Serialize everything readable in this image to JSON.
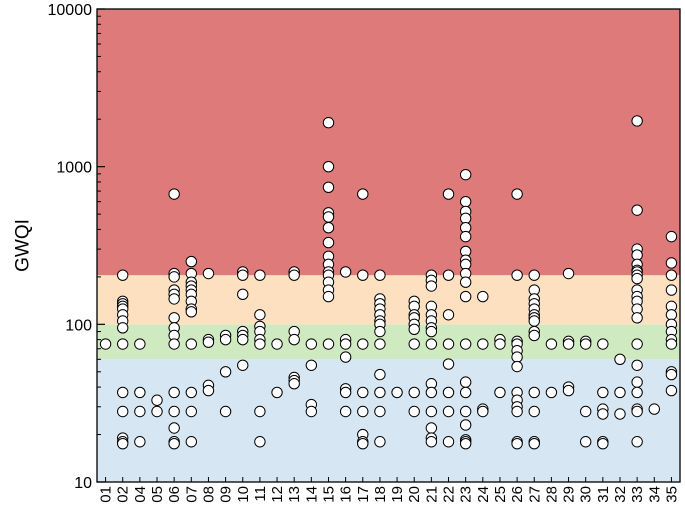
{
  "chart_data": {
    "type": "scatter",
    "title": "",
    "xlabel": "",
    "ylabel": "GWQI",
    "yscale": "log",
    "ylim": [
      10,
      10000
    ],
    "yticks": [
      {
        "value": 10,
        "label": "10"
      },
      {
        "value": 100,
        "label": "100"
      },
      {
        "value": 1000,
        "label": "1000"
      },
      {
        "value": 10000,
        "label": "10000"
      }
    ],
    "categories": [
      "01",
      "02",
      "04",
      "05",
      "06",
      "07",
      "08",
      "09",
      "10",
      "11",
      "12",
      "13",
      "14",
      "15",
      "16",
      "17",
      "18",
      "19",
      "20",
      "21",
      "22",
      "23",
      "24",
      "25",
      "26",
      "27",
      "28",
      "29",
      "30",
      "31",
      "32",
      "33",
      "34",
      "35"
    ],
    "bands": [
      {
        "from": 10,
        "to": 60,
        "color": "#d6e6f2"
      },
      {
        "from": 60,
        "to": 100,
        "color": "#cfeac0"
      },
      {
        "from": 100,
        "to": 205,
        "color": "#fde0c0"
      },
      {
        "from": 205,
        "to": 10000,
        "color": "#df7a7b"
      }
    ],
    "marker_fill": "#ffffff",
    "marker_stroke": "#000000",
    "points": [
      {
        "c": "01",
        "v": [
          75
        ]
      },
      {
        "c": "02",
        "v": [
          205,
          140,
          135,
          130,
          125,
          115,
          105,
          95,
          75,
          37,
          28,
          19,
          18,
          17.5
        ]
      },
      {
        "c": "04",
        "v": [
          75,
          37,
          28,
          18
        ]
      },
      {
        "c": "05",
        "v": [
          33,
          28
        ]
      },
      {
        "c": "06",
        "v": [
          670,
          210,
          200,
          165,
          155,
          145,
          110,
          95,
          85,
          75,
          37,
          28,
          22,
          18,
          17.5
        ]
      },
      {
        "c": "07",
        "v": [
          250,
          210,
          185,
          175,
          165,
          155,
          140,
          125,
          120,
          75,
          37,
          28,
          18
        ]
      },
      {
        "c": "08",
        "v": [
          210,
          80,
          77,
          41,
          38
        ]
      },
      {
        "c": "09",
        "v": [
          85,
          80,
          50,
          28
        ]
      },
      {
        "c": "10",
        "v": [
          215,
          205,
          155,
          90,
          85,
          80,
          55
        ]
      },
      {
        "c": "11",
        "v": [
          205,
          115,
          97,
          90,
          80,
          75,
          28,
          18
        ]
      },
      {
        "c": "12",
        "v": [
          75,
          37
        ]
      },
      {
        "c": "13",
        "v": [
          215,
          205,
          90,
          80,
          46,
          44,
          42
        ]
      },
      {
        "c": "14",
        "v": [
          75,
          55,
          31,
          28
        ]
      },
      {
        "c": "15",
        "v": [
          1900,
          1000,
          740,
          510,
          480,
          410,
          330,
          270,
          240,
          215,
          205,
          185,
          165,
          150,
          75
        ]
      },
      {
        "c": "16",
        "v": [
          215,
          80,
          75,
          62,
          39,
          37,
          28
        ]
      },
      {
        "c": "17",
        "v": [
          670,
          205,
          75,
          37,
          28,
          20,
          18,
          17.5
        ]
      },
      {
        "c": "18",
        "v": [
          205,
          145,
          135,
          125,
          115,
          105,
          100,
          90,
          75,
          48,
          37,
          28,
          18
        ]
      },
      {
        "c": "19",
        "v": [
          37
        ]
      },
      {
        "c": "20",
        "v": [
          140,
          130,
          115,
          110,
          100,
          93,
          75,
          37,
          28
        ]
      },
      {
        "c": "21",
        "v": [
          205,
          190,
          175,
          130,
          115,
          105,
          95,
          90,
          75,
          42,
          37,
          28,
          22,
          19,
          18
        ]
      },
      {
        "c": "22",
        "v": [
          670,
          205,
          115,
          75,
          56,
          37,
          28,
          18
        ]
      },
      {
        "c": "23",
        "v": [
          890,
          600,
          520,
          470,
          410,
          360,
          290,
          255,
          240,
          210,
          185,
          150,
          75,
          43,
          37,
          28,
          23,
          18.5,
          18,
          17.5
        ]
      },
      {
        "c": "24",
        "v": [
          150,
          75,
          29,
          28
        ]
      },
      {
        "c": "25",
        "v": [
          80,
          75,
          37
        ]
      },
      {
        "c": "26",
        "v": [
          670,
          205,
          78,
          75,
          68,
          62,
          54,
          37,
          33,
          30,
          28,
          18,
          17.5
        ]
      },
      {
        "c": "27",
        "v": [
          205,
          165,
          145,
          135,
          125,
          115,
          110,
          105,
          90,
          85,
          37,
          28,
          18,
          17.5
        ]
      },
      {
        "c": "28",
        "v": [
          75,
          37
        ]
      },
      {
        "c": "29",
        "v": [
          210,
          78,
          75,
          40,
          38
        ]
      },
      {
        "c": "30",
        "v": [
          78,
          75,
          28,
          18
        ]
      },
      {
        "c": "31",
        "v": [
          75,
          37,
          29,
          27,
          18,
          17.5
        ]
      },
      {
        "c": "32",
        "v": [
          60,
          37,
          27
        ]
      },
      {
        "c": "33",
        "v": [
          1950,
          530,
          300,
          275,
          240,
          220,
          215,
          205,
          195,
          165,
          150,
          140,
          125,
          110,
          75,
          55,
          43,
          37,
          29,
          28,
          18
        ]
      },
      {
        "c": "34",
        "v": [
          29
        ]
      },
      {
        "c": "35",
        "v": [
          360,
          245,
          205,
          165,
          130,
          115,
          100,
          90,
          80,
          75,
          50,
          48,
          38
        ]
      }
    ]
  }
}
